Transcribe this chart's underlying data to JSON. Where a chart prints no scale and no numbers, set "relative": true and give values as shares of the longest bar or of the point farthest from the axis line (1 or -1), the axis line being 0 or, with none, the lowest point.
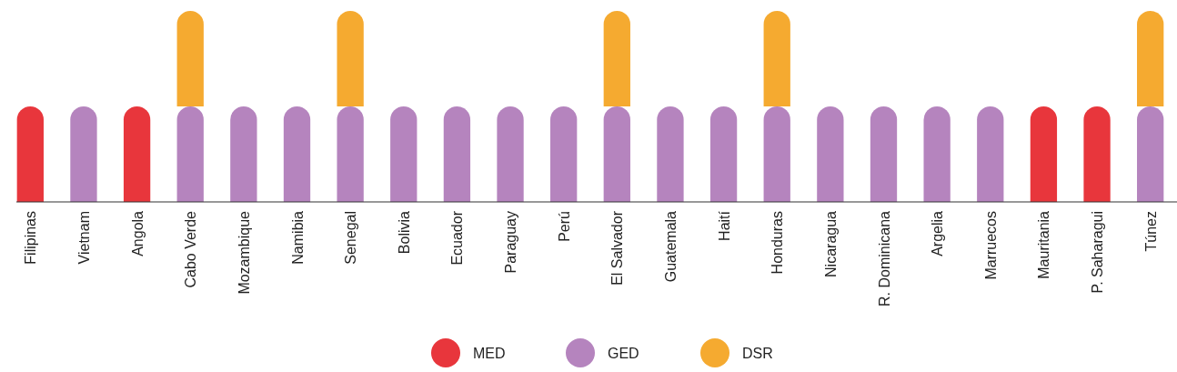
{
  "chart_data": {
    "type": "bar",
    "stacked": true,
    "relative": true,
    "legend": "bottom",
    "categories": [
      "Filipinas",
      "Vietnam",
      "Angola",
      "Cabo Verde",
      "Mozambique",
      "Namibia",
      "Senegal",
      "Bolivia",
      "Ecuador",
      "Paraguay",
      "Perú",
      "El Salvador",
      "Guatemala",
      "Haití",
      "Honduras",
      "Nicaragua",
      "R. Dominicana",
      "Argelia",
      "Marruecos",
      "Mauritania",
      "P. Saharagui",
      "Túnez"
    ],
    "series": [
      {
        "name": "MED",
        "color": "#e8363c",
        "values": [
          0.5,
          null,
          0.5,
          null,
          null,
          null,
          null,
          null,
          null,
          null,
          null,
          null,
          null,
          null,
          null,
          null,
          null,
          null,
          null,
          0.5,
          0.5,
          null
        ]
      },
      {
        "name": "GED",
        "color": "#b584be",
        "values": [
          null,
          0.5,
          null,
          0.5,
          0.5,
          0.5,
          0.5,
          0.5,
          0.5,
          0.5,
          0.5,
          0.5,
          0.5,
          0.5,
          0.5,
          0.5,
          0.5,
          0.5,
          0.5,
          null,
          null,
          0.5
        ]
      },
      {
        "name": "DSR",
        "color": "#f5aa30",
        "values": [
          null,
          null,
          null,
          0.5,
          null,
          null,
          0.5,
          null,
          null,
          null,
          null,
          0.5,
          null,
          null,
          0.5,
          null,
          null,
          null,
          null,
          null,
          null,
          0.5
        ]
      }
    ]
  }
}
